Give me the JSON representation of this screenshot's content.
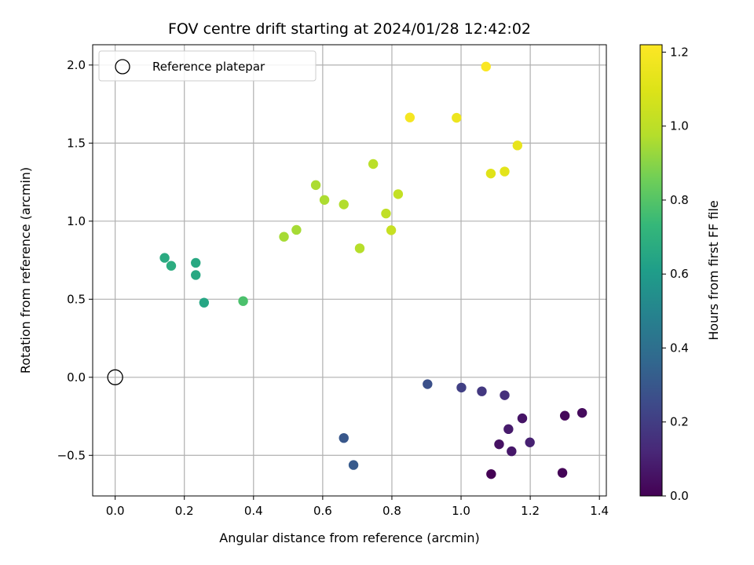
{
  "chart_data": {
    "type": "scatter",
    "title": "FOV centre drift starting at 2024/01/28 12:42:02",
    "xlabel": "Angular distance from reference (arcmin)",
    "ylabel": "Rotation from reference (arcmin)",
    "xlim": [
      -0.065,
      1.42
    ],
    "ylim": [
      -0.76,
      2.13
    ],
    "xticks": [
      0.0,
      0.2,
      0.4,
      0.6,
      0.8,
      1.0,
      1.2,
      1.4
    ],
    "xtick_labels": [
      "0.0",
      "0.2",
      "0.4",
      "0.6",
      "0.8",
      "1.0",
      "1.2",
      "1.4"
    ],
    "yticks": [
      -0.5,
      0.0,
      0.5,
      1.0,
      1.5,
      2.0
    ],
    "ytick_labels": [
      "−0.5",
      "0.0",
      "0.5",
      "1.0",
      "1.5",
      "2.0"
    ],
    "grid": true,
    "legend": {
      "placement": "top-left",
      "entries": [
        {
          "label": "Reference platepar",
          "marker": "open-circle",
          "color": "#000000"
        }
      ]
    },
    "reference_point": {
      "x": 0.0,
      "y": 0.0
    },
    "colorbar": {
      "label": "Hours from first FF file",
      "colormap": "viridis",
      "range": [
        0.0,
        1.22
      ],
      "ticks": [
        0.0,
        0.2,
        0.4,
        0.6,
        0.8,
        1.0,
        1.2
      ],
      "tick_labels": [
        "0.0",
        "0.2",
        "0.4",
        "0.6",
        "0.8",
        "1.0",
        "1.2"
      ]
    },
    "points": [
      {
        "x": 1.087,
        "y": -0.62,
        "c": 0.0
      },
      {
        "x": 1.293,
        "y": -0.612,
        "c": 0.01
      },
      {
        "x": 1.3,
        "y": -0.246,
        "c": 0.02
      },
      {
        "x": 1.35,
        "y": -0.228,
        "c": 0.03
      },
      {
        "x": 1.11,
        "y": -0.429,
        "c": 0.05
      },
      {
        "x": 1.177,
        "y": -0.263,
        "c": 0.06
      },
      {
        "x": 1.146,
        "y": -0.474,
        "c": 0.07
      },
      {
        "x": 1.137,
        "y": -0.332,
        "c": 0.08
      },
      {
        "x": 1.199,
        "y": -0.417,
        "c": 0.1
      },
      {
        "x": 1.126,
        "y": -0.115,
        "c": 0.15
      },
      {
        "x": 1.06,
        "y": -0.09,
        "c": 0.18
      },
      {
        "x": 1.001,
        "y": -0.066,
        "c": 0.21
      },
      {
        "x": 0.903,
        "y": -0.044,
        "c": 0.27
      },
      {
        "x": 0.661,
        "y": -0.389,
        "c": 0.3
      },
      {
        "x": 0.689,
        "y": -0.562,
        "c": 0.31
      },
      {
        "x": 0.257,
        "y": 0.478,
        "c": 0.65
      },
      {
        "x": 0.233,
        "y": 0.655,
        "c": 0.66
      },
      {
        "x": 0.233,
        "y": 0.733,
        "c": 0.66
      },
      {
        "x": 0.143,
        "y": 0.765,
        "c": 0.67
      },
      {
        "x": 0.162,
        "y": 0.714,
        "c": 0.68
      },
      {
        "x": 0.37,
        "y": 0.488,
        "c": 0.78
      },
      {
        "x": 0.488,
        "y": 0.9,
        "c": 0.95
      },
      {
        "x": 0.524,
        "y": 0.944,
        "c": 0.95
      },
      {
        "x": 0.58,
        "y": 1.231,
        "c": 0.96
      },
      {
        "x": 0.605,
        "y": 1.136,
        "c": 0.96
      },
      {
        "x": 0.661,
        "y": 1.107,
        "c": 0.97
      },
      {
        "x": 0.707,
        "y": 0.826,
        "c": 0.98
      },
      {
        "x": 0.746,
        "y": 1.366,
        "c": 0.99
      },
      {
        "x": 0.783,
        "y": 1.049,
        "c": 1.01
      },
      {
        "x": 0.818,
        "y": 1.173,
        "c": 1.02
      },
      {
        "x": 0.798,
        "y": 0.942,
        "c": 1.03
      },
      {
        "x": 1.086,
        "y": 1.305,
        "c": 1.11
      },
      {
        "x": 1.126,
        "y": 1.318,
        "c": 1.12
      },
      {
        "x": 1.163,
        "y": 1.485,
        "c": 1.14
      },
      {
        "x": 0.987,
        "y": 1.662,
        "c": 1.16
      },
      {
        "x": 0.852,
        "y": 1.664,
        "c": 1.19
      },
      {
        "x": 1.072,
        "y": 1.99,
        "c": 1.21
      }
    ]
  }
}
